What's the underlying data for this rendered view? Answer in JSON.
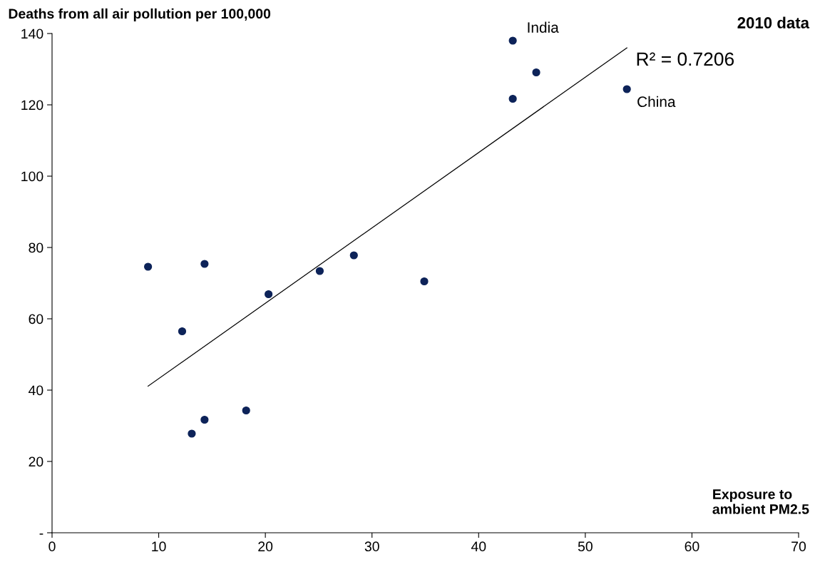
{
  "chart_data": {
    "type": "scatter",
    "ylabel": "Deaths from all air pollution per 100,000",
    "xlabel": "Exposure to\nambient PM2.5",
    "series": [
      {
        "color": "#0d2359",
        "marker": "circle",
        "x": [
          9.0,
          12.2,
          13.1,
          14.3,
          14.3,
          18.2,
          20.3,
          25.1,
          28.3,
          34.9,
          43.2,
          43.2,
          45.4,
          53.9
        ],
        "values": [
          74.6,
          56.5,
          27.8,
          75.4,
          31.7,
          34.3,
          66.9,
          73.4,
          77.8,
          70.5,
          121.7,
          138.0,
          129.1,
          124.4
        ]
      },
      {
        "type": "line",
        "marker": "none",
        "color": "#000000",
        "x": [
          9.0,
          53.9
        ],
        "values": [
          41.1,
          136.0
        ]
      }
    ],
    "annotations": [
      {
        "text": "India",
        "x": 43.2,
        "y": 138.0
      },
      {
        "text": "China",
        "x": 53.9,
        "y": 124.4
      },
      "R² = 0.7206",
      "2010 data"
    ],
    "xlim": [
      0,
      70
    ],
    "xticks": [
      0,
      10,
      20,
      30,
      40,
      50,
      60,
      70
    ],
    "ylim": [
      0,
      140
    ],
    "yticks": [
      {
        "value": 0,
        "label": "-"
      },
      20,
      40,
      60,
      80,
      100,
      120,
      140
    ],
    "grid": false,
    "legend": false
  }
}
